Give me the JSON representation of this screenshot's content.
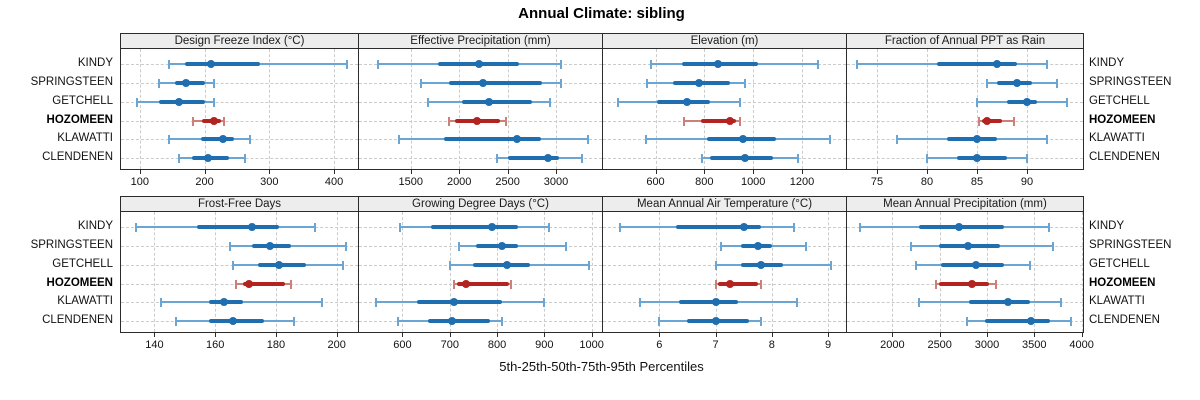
{
  "title": "Annual Climate: sibling",
  "footer": "5th-25th-50th-75th-95th Percentiles",
  "sites": [
    "KINDY",
    "SPRINGSTEEN",
    "GETCHELL",
    "HOZOMEEN",
    "KLAWATTI",
    "CLENDENEN"
  ],
  "highlight_site": "HOZOMEEN",
  "colors": {
    "blue_main": "#1f6eb0",
    "blue_light": "#6aa5d3",
    "red_main": "#b3231f",
    "red_light": "#cd7f78",
    "grid": "#cbcbcb",
    "panel_border": "#2b2b2b",
    "strip_bg": "#ededed"
  },
  "chart_data": {
    "type": "scatter",
    "subtype": "percentile-dotplot-lattice",
    "title": "Annual Climate: sibling",
    "xlabel": "5th-25th-50th-75th-95th Percentiles",
    "grid": "dashed",
    "percentiles": [
      5,
      25,
      50,
      75,
      95
    ],
    "categories": [
      "KINDY",
      "SPRINGSTEEN",
      "GETCHELL",
      "HOZOMEEN",
      "KLAWATTI",
      "CLENDENEN"
    ],
    "highlight": "HOZOMEEN",
    "panels": [
      {
        "row": 0,
        "col": 0,
        "title": "Design Freeze Index (°C)",
        "xlim": [
          71,
          437
        ],
        "ticks": [
          100,
          200,
          300,
          400
        ],
        "values": [
          [
            145,
            170,
            210,
            285,
            420
          ],
          [
            130,
            155,
            172,
            200,
            215
          ],
          [
            95,
            130,
            160,
            200,
            215
          ],
          [
            182,
            196,
            214,
            226,
            230
          ],
          [
            145,
            195,
            228,
            245,
            270
          ],
          [
            160,
            180,
            206,
            238,
            263
          ]
        ]
      },
      {
        "row": 0,
        "col": 1,
        "title": "Effective Precipitation (mm)",
        "xlim": [
          965,
          3475
        ],
        "ticks": [
          1500,
          2000,
          2500,
          3000
        ],
        "values": [
          [
            1160,
            1780,
            2200,
            2620,
            3050
          ],
          [
            1605,
            1890,
            2250,
            2860,
            3050
          ],
          [
            1680,
            2030,
            2305,
            2750,
            2940
          ],
          [
            1890,
            1960,
            2180,
            2420,
            2480
          ],
          [
            1380,
            1845,
            2600,
            2840,
            3335
          ],
          [
            2390,
            2500,
            2920,
            3030,
            3270
          ]
        ]
      },
      {
        "row": 0,
        "col": 2,
        "title": "Elevation (m)",
        "xlim": [
          385,
          1380
        ],
        "ticks": [
          600,
          800,
          1000,
          1200
        ],
        "values": [
          [
            580,
            710,
            855,
            1020,
            1265
          ],
          [
            565,
            670,
            780,
            905,
            965
          ],
          [
            445,
            605,
            730,
            825,
            945
          ],
          [
            715,
            785,
            905,
            930,
            945
          ],
          [
            560,
            810,
            960,
            1095,
            1315
          ],
          [
            790,
            825,
            965,
            1080,
            1185
          ]
        ]
      },
      {
        "row": 0,
        "col": 3,
        "title": "Fraction of Annual PPT as Rain",
        "xlim": [
          72,
          95.6
        ],
        "ticks": [
          75,
          80,
          85,
          90
        ],
        "values": [
          [
            73,
            81,
            87,
            89,
            92
          ],
          [
            86,
            87,
            89,
            90.5,
            93
          ],
          [
            85,
            88,
            90,
            91,
            94
          ],
          [
            85.2,
            85.5,
            86,
            87.5,
            88.7
          ],
          [
            77,
            82,
            85,
            87,
            92
          ],
          [
            80,
            83,
            85,
            88,
            90
          ]
        ]
      },
      {
        "row": 1,
        "col": 0,
        "title": "Frost-Free Days",
        "xlim": [
          129,
          207
        ],
        "ticks": [
          140,
          160,
          180,
          200
        ],
        "values": [
          [
            134,
            154,
            172,
            181,
            193
          ],
          [
            165,
            172,
            178,
            185,
            203
          ],
          [
            166,
            174,
            181,
            190,
            202
          ],
          [
            167,
            169,
            171,
            183,
            185
          ],
          [
            142,
            158,
            163,
            169,
            195
          ],
          [
            147,
            158,
            166,
            176,
            186
          ]
        ]
      },
      {
        "row": 1,
        "col": 1,
        "title": "Growing Degree Days (°C)",
        "xlim": [
          508,
          1022
        ],
        "ticks": [
          600,
          700,
          800,
          900,
          1000
        ],
        "values": [
          [
            595,
            660,
            790,
            845,
            910
          ],
          [
            720,
            755,
            810,
            845,
            945
          ],
          [
            700,
            750,
            820,
            870,
            995
          ],
          [
            710,
            715,
            735,
            825,
            830
          ],
          [
            545,
            630,
            710,
            810,
            900
          ],
          [
            590,
            655,
            705,
            785,
            810
          ]
        ]
      },
      {
        "row": 1,
        "col": 2,
        "title": "Mean Annual Air Temperature (°C)",
        "xlim": [
          5.0,
          9.32
        ],
        "ticks": [
          6,
          7,
          8,
          9
        ],
        "values": [
          [
            5.3,
            6.3,
            7.5,
            7.8,
            8.4
          ],
          [
            7.1,
            7.45,
            7.75,
            8.0,
            8.6
          ],
          [
            7.0,
            7.45,
            7.8,
            8.2,
            9.05
          ],
          [
            7.0,
            7.05,
            7.25,
            7.75,
            7.8
          ],
          [
            5.65,
            6.35,
            7.0,
            7.4,
            8.45
          ],
          [
            6.0,
            6.5,
            7.0,
            7.6,
            7.8
          ]
        ]
      },
      {
        "row": 1,
        "col": 3,
        "title": "Mean Annual Precipitation (mm)",
        "xlim": [
          1520,
          4015
        ],
        "ticks": [
          2000,
          2500,
          3000,
          3500,
          4000
        ],
        "values": [
          [
            1660,
            2285,
            2700,
            3175,
            3660
          ],
          [
            2200,
            2490,
            2795,
            3140,
            3700
          ],
          [
            2250,
            2510,
            2885,
            3175,
            3455
          ],
          [
            2465,
            2495,
            2840,
            3020,
            3095
          ],
          [
            2285,
            2805,
            3225,
            3455,
            3780
          ],
          [
            2790,
            2980,
            3460,
            3665,
            3885
          ]
        ]
      }
    ]
  }
}
